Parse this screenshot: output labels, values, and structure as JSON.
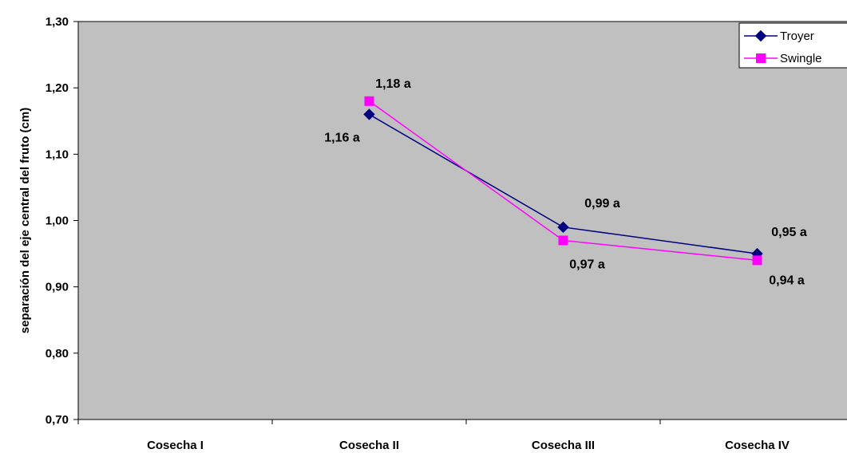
{
  "chart_data": {
    "type": "line",
    "categories": [
      "Cosecha I",
      "Cosecha II",
      "Cosecha III",
      "Cosecha IV"
    ],
    "ylabel": "separación del eje central del fruto (cm)",
    "ylim": [
      0.7,
      1.3
    ],
    "yticks": [
      "0,70",
      "0,80",
      "0,90",
      "1,00",
      "1,10",
      "1,20",
      "1,30"
    ],
    "plot_background": "#c0c0c0",
    "grid": false,
    "legend_position": "top-right",
    "series": [
      {
        "name": "Troyer",
        "color": "#000080",
        "marker": "diamond",
        "values": [
          null,
          1.16,
          0.99,
          0.95
        ],
        "labels": [
          null,
          "1,16 a",
          "0,99 a",
          "0,95 a"
        ]
      },
      {
        "name": "Swingle",
        "color": "#ff00ff",
        "marker": "square",
        "values": [
          null,
          1.18,
          0.97,
          0.94
        ],
        "labels": [
          null,
          "1,18 a",
          "0,97 a",
          "0,94 a"
        ]
      }
    ]
  }
}
